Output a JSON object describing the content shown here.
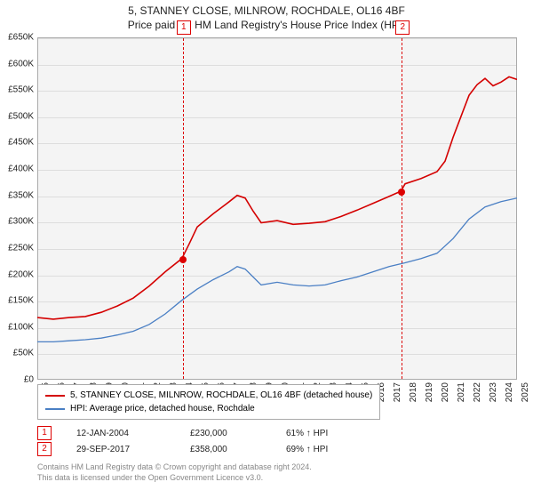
{
  "title": {
    "line1": "5, STANNEY CLOSE, MILNROW, ROCHDALE, OL16 4BF",
    "line2": "Price paid vs. HM Land Registry's House Price Index (HPI)"
  },
  "chart": {
    "type": "line",
    "background_color": "#f4f4f4",
    "grid_color": "#dddddd",
    "border_color": "#aaaaaa",
    "y_axis": {
      "min": 0,
      "max": 650000,
      "tick_step": 50000,
      "ticks": [
        "£0",
        "£50K",
        "£100K",
        "£150K",
        "£200K",
        "£250K",
        "£300K",
        "£350K",
        "£400K",
        "£450K",
        "£500K",
        "£550K",
        "£600K",
        "£650K"
      ]
    },
    "x_axis": {
      "min": 1995,
      "max": 2025,
      "ticks": [
        1995,
        1996,
        1997,
        1998,
        1999,
        2000,
        2001,
        2002,
        2003,
        2004,
        2005,
        2006,
        2007,
        2008,
        2009,
        2010,
        2011,
        2012,
        2013,
        2014,
        2015,
        2016,
        2017,
        2018,
        2019,
        2020,
        2021,
        2022,
        2023,
        2024,
        2025
      ]
    },
    "series": [
      {
        "name": "price_paid",
        "label": "5, STANNEY CLOSE, MILNROW, ROCHDALE, OL16 4BF (detached house)",
        "color": "#d40000",
        "line_width": 1.6,
        "points": [
          [
            1995,
            118000
          ],
          [
            1996,
            115000
          ],
          [
            1997,
            118000
          ],
          [
            1998,
            120000
          ],
          [
            1999,
            128000
          ],
          [
            2000,
            140000
          ],
          [
            2001,
            155000
          ],
          [
            2002,
            178000
          ],
          [
            2003,
            205000
          ],
          [
            2004.04,
            230000
          ],
          [
            2004.5,
            258000
          ],
          [
            2005,
            290000
          ],
          [
            2006,
            315000
          ],
          [
            2007,
            338000
          ],
          [
            2007.5,
            350000
          ],
          [
            2008,
            345000
          ],
          [
            2008.5,
            320000
          ],
          [
            2009,
            298000
          ],
          [
            2010,
            302000
          ],
          [
            2011,
            295000
          ],
          [
            2012,
            297000
          ],
          [
            2013,
            300000
          ],
          [
            2014,
            310000
          ],
          [
            2015,
            322000
          ],
          [
            2016,
            335000
          ],
          [
            2017,
            348000
          ],
          [
            2017.74,
            358000
          ],
          [
            2018,
            372000
          ],
          [
            2019,
            382000
          ],
          [
            2020,
            395000
          ],
          [
            2020.5,
            415000
          ],
          [
            2021,
            460000
          ],
          [
            2021.5,
            500000
          ],
          [
            2022,
            540000
          ],
          [
            2022.5,
            560000
          ],
          [
            2023,
            572000
          ],
          [
            2023.5,
            558000
          ],
          [
            2024,
            565000
          ],
          [
            2024.5,
            575000
          ],
          [
            2025,
            570000
          ]
        ]
      },
      {
        "name": "hpi",
        "label": "HPI: Average price, detached house, Rochdale",
        "color": "#4a7fc4",
        "line_width": 1.3,
        "points": [
          [
            1995,
            72000
          ],
          [
            1996,
            72000
          ],
          [
            1997,
            74000
          ],
          [
            1998,
            76000
          ],
          [
            1999,
            79000
          ],
          [
            2000,
            85000
          ],
          [
            2001,
            92000
          ],
          [
            2002,
            105000
          ],
          [
            2003,
            125000
          ],
          [
            2004,
            150000
          ],
          [
            2005,
            172000
          ],
          [
            2006,
            190000
          ],
          [
            2007,
            205000
          ],
          [
            2007.5,
            215000
          ],
          [
            2008,
            210000
          ],
          [
            2008.5,
            195000
          ],
          [
            2009,
            180000
          ],
          [
            2010,
            185000
          ],
          [
            2011,
            180000
          ],
          [
            2012,
            178000
          ],
          [
            2013,
            180000
          ],
          [
            2014,
            188000
          ],
          [
            2015,
            195000
          ],
          [
            2016,
            205000
          ],
          [
            2017,
            215000
          ],
          [
            2018,
            222000
          ],
          [
            2019,
            230000
          ],
          [
            2020,
            240000
          ],
          [
            2021,
            268000
          ],
          [
            2022,
            305000
          ],
          [
            2023,
            328000
          ],
          [
            2024,
            338000
          ],
          [
            2025,
            345000
          ]
        ]
      }
    ],
    "markers": [
      {
        "id": "1",
        "x": 2004.04,
        "y": 230000
      },
      {
        "id": "2",
        "x": 2017.74,
        "y": 358000
      }
    ]
  },
  "legend": {
    "items": [
      {
        "color": "#d40000",
        "label": "5, STANNEY CLOSE, MILNROW, ROCHDALE, OL16 4BF (detached house)"
      },
      {
        "color": "#4a7fc4",
        "label": "HPI: Average price, detached house, Rochdale"
      }
    ]
  },
  "sales": [
    {
      "id": "1",
      "date": "12-JAN-2004",
      "price": "£230,000",
      "hpi": "61% ↑ HPI"
    },
    {
      "id": "2",
      "date": "29-SEP-2017",
      "price": "£358,000",
      "hpi": "69% ↑ HPI"
    }
  ],
  "footer": {
    "line1": "Contains HM Land Registry data © Crown copyright and database right 2024.",
    "line2": "This data is licensed under the Open Government Licence v3.0."
  }
}
